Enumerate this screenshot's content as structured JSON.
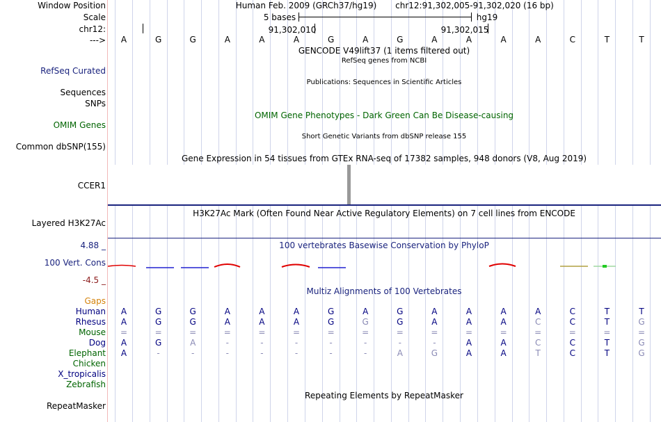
{
  "header": {
    "window_position_label": "Window Position",
    "scale_label": "Scale",
    "chrom_label": "chr12:",
    "strand_label": "--->",
    "assembly": "Human Feb. 2009 (GRCh37/hg19)",
    "position": "chr12:91,302,005-91,302,020 (16 bp)",
    "scale_text": "5 bases",
    "scale_db": "hg19",
    "coord1": "91,302,010",
    "coord2": "91,302,015"
  },
  "sequence": [
    "A",
    "G",
    "G",
    "A",
    "A",
    "A",
    "G",
    "A",
    "G",
    "A",
    "A",
    "A",
    "A",
    "C",
    "T",
    "T"
  ],
  "tracks": {
    "gencode": "GENCODE V49lift37 (1 items filtered out)",
    "refseq_center": "RefSeq genes from NCBI",
    "refseq_label": "RefSeq Curated",
    "pubs_center": "Publications: Sequences in Scientific Articles",
    "seq_label": "Sequences",
    "snps_label": "SNPs",
    "omim_center": "OMIM Gene Phenotypes - Dark Green Can Be Disease-causing",
    "omim_label": "OMIM Genes",
    "dbsnp_center": "Short Genetic Variants from dbSNP release 155",
    "dbsnp_label": "Common dbSNP(155)",
    "gtex_center": "Gene Expression in 54 tissues from GTEx RNA-seq of 17382 samples, 948 donors (V8, Aug 2019)",
    "gtex_label": "CCER1",
    "h3k_center": "H3K27Ac Mark (Often Found Near Active Regulatory Elements) on 7 cell lines from ENCODE",
    "h3k_label": "Layered H3K27Ac",
    "phylop_center": "100 vertebrates Basewise Conservation by PhyloP",
    "phylop_max": "4.88 _",
    "phylop_label": "100 Vert. Cons",
    "phylop_min": "-4.5 _",
    "multiz_center": "Multiz Alignments of 100 Vertebrates",
    "gaps_label": "Gaps",
    "rmsk_center": "Repeating Elements by RepeatMasker",
    "rmsk_label": "RepeatMasker"
  },
  "alignment": [
    {
      "species": "Human",
      "color": "#000080",
      "bases": [
        "A",
        "G",
        "G",
        "A",
        "A",
        "A",
        "G",
        "A",
        "G",
        "A",
        "A",
        "A",
        "A",
        "C",
        "T",
        "T"
      ]
    },
    {
      "species": "Rhesus",
      "color": "#000080",
      "bases": [
        "A",
        "G",
        "G",
        "A",
        "A",
        "A",
        "G",
        "G",
        "G",
        "A",
        "A",
        "A",
        "C",
        "C",
        "T",
        "G"
      ]
    },
    {
      "species": "Mouse",
      "color": "#006400",
      "bases": [
        "=",
        "=",
        "=",
        "=",
        "=",
        "=",
        "=",
        "=",
        "=",
        "=",
        "=",
        "=",
        "=",
        "=",
        "=",
        "="
      ]
    },
    {
      "species": "Dog",
      "color": "#000080",
      "bases": [
        "A",
        "G",
        "A",
        "-",
        "-",
        "-",
        "-",
        "-",
        "-",
        "-",
        "A",
        "A",
        "C",
        "C",
        "T",
        "G"
      ]
    },
    {
      "species": "Elephant",
      "color": "#006400",
      "bases": [
        "A",
        "-",
        "-",
        "-",
        "-",
        "-",
        "-",
        "-",
        "A",
        "G",
        "A",
        "A",
        "T",
        "C",
        "T",
        "G"
      ]
    },
    {
      "species": "Chicken",
      "color": "#006400",
      "bases": []
    },
    {
      "species": "X_tropicalis",
      "color": "#000080",
      "bases": []
    },
    {
      "species": "Zebrafish",
      "color": "#006400",
      "bases": []
    }
  ],
  "colors": {
    "navy": "#1a237e",
    "dark_green": "#006400",
    "gold": "#d4820a",
    "maroon": "#8b1a1a",
    "faded": "#8a8ab5"
  }
}
